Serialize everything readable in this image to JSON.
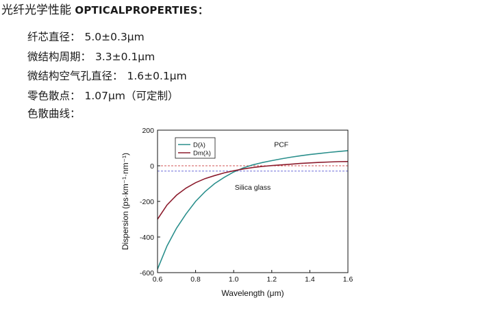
{
  "heading": {
    "zh": "光纤光学性能",
    "en": "OPTICALPROPERTIES："
  },
  "specs": [
    {
      "label": "纤芯直径：",
      "value": "5.0±0.3μm"
    },
    {
      "label": "微结构周期：",
      "value": "3.3±0.1μm"
    },
    {
      "label": "微结构空气孔直径：",
      "value": "1.6±0.1μm"
    },
    {
      "label": "零色散点：",
      "value": "1.07μm（可定制）"
    }
  ],
  "curve_label": "色散曲线：",
  "chart_data": {
    "type": "line",
    "xlabel": "Wavelength (μm)",
    "ylabel": "Dispersion (ps·km⁻¹·nm⁻¹)",
    "xlim": [
      0.6,
      1.6
    ],
    "ylim": [
      -600,
      200
    ],
    "xticks": [
      "0.6",
      "0.8",
      "1.0",
      "1.2",
      "1.4",
      "1.6"
    ],
    "yticks": [
      "-600",
      "-400",
      "-200",
      "0",
      "200"
    ],
    "legend_position": "top-left",
    "series": [
      {
        "name": "D(λ)",
        "color": "#2a8f8c",
        "x": [
          0.6,
          0.65,
          0.7,
          0.75,
          0.8,
          0.85,
          0.9,
          0.95,
          1.0,
          1.05,
          1.1,
          1.15,
          1.2,
          1.25,
          1.3,
          1.35,
          1.4,
          1.45,
          1.5,
          1.55,
          1.6
        ],
        "y": [
          -580,
          -450,
          -350,
          -270,
          -200,
          -145,
          -100,
          -65,
          -35,
          -12,
          5,
          18,
          29,
          39,
          48,
          56,
          63,
          69,
          75,
          80,
          85
        ]
      },
      {
        "name": "Dm(λ)",
        "color": "#8b1a2b",
        "x": [
          0.6,
          0.65,
          0.7,
          0.75,
          0.8,
          0.85,
          0.9,
          0.95,
          1.0,
          1.05,
          1.1,
          1.15,
          1.2,
          1.25,
          1.3,
          1.35,
          1.4,
          1.45,
          1.5,
          1.55,
          1.6
        ],
        "y": [
          -300,
          -220,
          -165,
          -125,
          -95,
          -72,
          -55,
          -40,
          -28,
          -18,
          -10,
          -4,
          1,
          5,
          9,
          13,
          16,
          19,
          21,
          23,
          24
        ]
      }
    ],
    "reference_lines": [
      {
        "y": 0,
        "color": "#d05050"
      },
      {
        "y": -30,
        "color": "#6a6ad8"
      }
    ],
    "annotations": [
      {
        "text": "PCF",
        "x": 1.25,
        "y": 105
      },
      {
        "text": "Silica glass",
        "x": 1.1,
        "y": -135
      }
    ]
  }
}
